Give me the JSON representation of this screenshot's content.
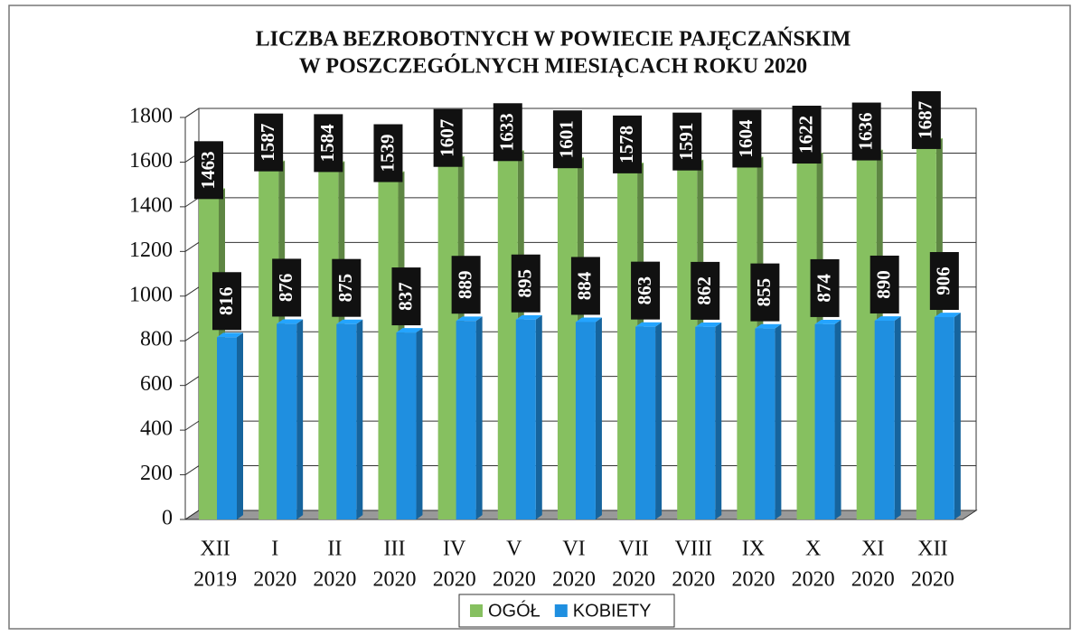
{
  "chart_data": {
    "type": "bar",
    "title": [
      "LICZBA BEZROBOTNYCH W POWIECIE PAJĘCZAŃSKIM",
      "W POSZCZEGÓLNYCH MIESIĄCACH ROKU 2020"
    ],
    "categories": [
      [
        "XII",
        "2019"
      ],
      [
        "I",
        "2020"
      ],
      [
        "II",
        "2020"
      ],
      [
        "III",
        "2020"
      ],
      [
        "IV",
        "2020"
      ],
      [
        "V",
        "2020"
      ],
      [
        "VI",
        "2020"
      ],
      [
        "VII",
        "2020"
      ],
      [
        "VIII",
        "2020"
      ],
      [
        "IX",
        "2020"
      ],
      [
        "X",
        "2020"
      ],
      [
        "XI",
        "2020"
      ],
      [
        "XII",
        "2020"
      ]
    ],
    "series": [
      {
        "name": "OGÓŁ",
        "color": "#86c060",
        "values": [
          1463,
          1587,
          1584,
          1539,
          1607,
          1633,
          1601,
          1578,
          1591,
          1604,
          1622,
          1636,
          1687
        ]
      },
      {
        "name": "KOBIETY",
        "color": "#1f8fe0",
        "values": [
          816,
          876,
          875,
          837,
          889,
          895,
          884,
          863,
          862,
          855,
          874,
          890,
          906
        ]
      }
    ],
    "ylim": [
      0,
      1800
    ],
    "yticks": [
      0,
      200,
      400,
      600,
      800,
      1000,
      1200,
      1400,
      1600,
      1800
    ],
    "grid": true,
    "legend": "bottom"
  }
}
